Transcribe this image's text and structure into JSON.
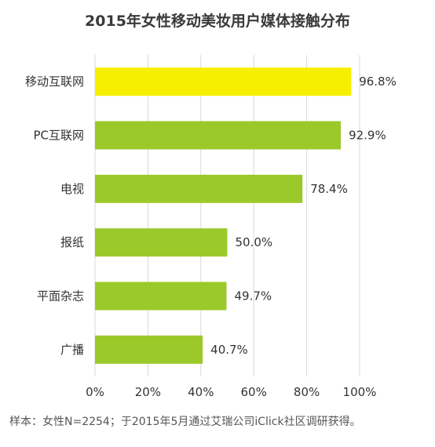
{
  "chart_data": {
    "type": "bar",
    "orientation": "horizontal",
    "title": "2015年女性移动美妆用户媒体接触分布",
    "categories": [
      "移动互联网",
      "PC互联网",
      "电视",
      "报纸",
      "平面杂志",
      "广播"
    ],
    "values": [
      96.8,
      92.9,
      78.4,
      50.0,
      49.7,
      40.7
    ],
    "value_labels": [
      "96.8%",
      "92.9%",
      "78.4%",
      "50.0%",
      "49.7%",
      "40.7%"
    ],
    "xlim": [
      0,
      100
    ],
    "xticks": [
      0,
      20,
      40,
      60,
      80,
      100
    ],
    "xtick_labels": [
      "0%",
      "20%",
      "40%",
      "60%",
      "80%",
      "100%"
    ],
    "xlabel": "",
    "ylabel": "",
    "grid": "vertical",
    "colors": {
      "highlight": "#f6f000",
      "default": "#9bc92a",
      "grid": "#d9d9d9"
    },
    "highlight_index": 0
  },
  "footnote": "样本：女性N=2254；于2015年5月通过艾瑞公司iClick社区调研获得。"
}
